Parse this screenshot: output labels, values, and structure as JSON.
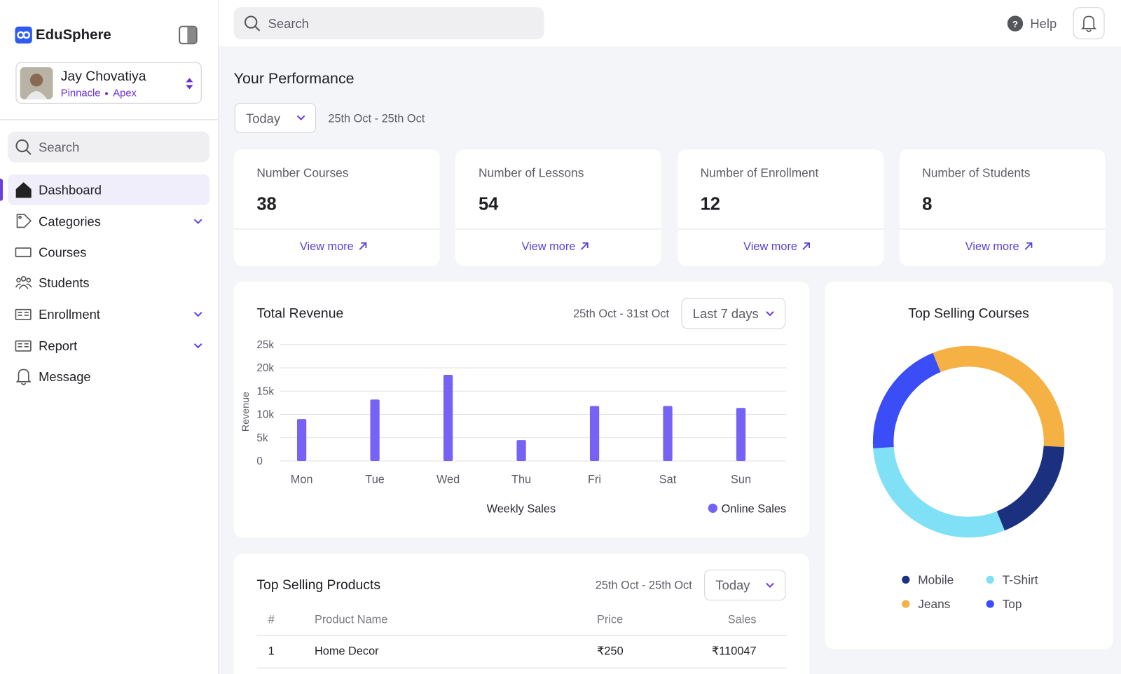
{
  "sidebar": {
    "brand": "EduSphere",
    "user": {
      "name": "Jay Chovatiya",
      "org": "Pinnacle",
      "team": "Apex"
    },
    "search_placeholder": "Search",
    "nav": [
      "Dashboard",
      "Categories",
      "Courses",
      "Students",
      "Enrollment",
      "Report",
      "Message"
    ]
  },
  "header": {
    "search_placeholder": "Search",
    "help": "Help"
  },
  "performance": {
    "title": "Your Performance",
    "period": "Today",
    "date_range": "25th Oct - 25th Oct",
    "cards": [
      {
        "label": "Number Courses",
        "value": 38,
        "link": "View more"
      },
      {
        "label": "Number of Lessons",
        "value": 54,
        "link": "View more"
      },
      {
        "label": "Number of Enrollment",
        "value": 12,
        "link": "View more"
      },
      {
        "label": "Number of Students",
        "value": 8,
        "link": "View more"
      }
    ]
  },
  "revenue_chart": {
    "type": "bar",
    "title": "Total Revenue",
    "date_range": "25th Oct - 31st Oct",
    "period": "Last 7 days",
    "y_label": "Revenue",
    "x_label": "Weekly Sales",
    "categories": [
      "Mon",
      "Tue",
      "Wed",
      "Thu",
      "Fri",
      "Sat",
      "Sun"
    ],
    "series": [
      {
        "name": "Online Sales",
        "color": "#7662f4",
        "values": [
          9000,
          13200,
          18500,
          4500,
          11800,
          11800,
          11400
        ]
      }
    ],
    "ylim": [
      0,
      25000
    ],
    "yticks": [
      0,
      {
        "value": 5000,
        "label": "5k"
      },
      {
        "value": 10000,
        "label": "10k"
      },
      {
        "value": 15000,
        "label": "15k"
      },
      {
        "value": 20000,
        "label": "20k"
      },
      {
        "value": 25000,
        "label": "25k"
      }
    ],
    "grid": true
  },
  "courses_chart": {
    "type": "pie",
    "title": "Top Selling Courses",
    "categories": [
      "Mobile",
      "T-Shirt",
      "Jeans",
      "Top"
    ],
    "values": [
      18,
      30,
      32,
      20
    ],
    "colors": [
      "#1b3180",
      "#80e0f5",
      "#f5b143",
      "#3a4df6"
    ]
  },
  "products": {
    "title": "Top Selling Products",
    "date_range": "25th Oct - 25th Oct",
    "period": "Today",
    "columns": [
      "#",
      "Product Name",
      "Price",
      "Sales"
    ],
    "rows": [
      [
        "1",
        "Home Decor",
        "₹250",
        "₹110047"
      ]
    ]
  }
}
